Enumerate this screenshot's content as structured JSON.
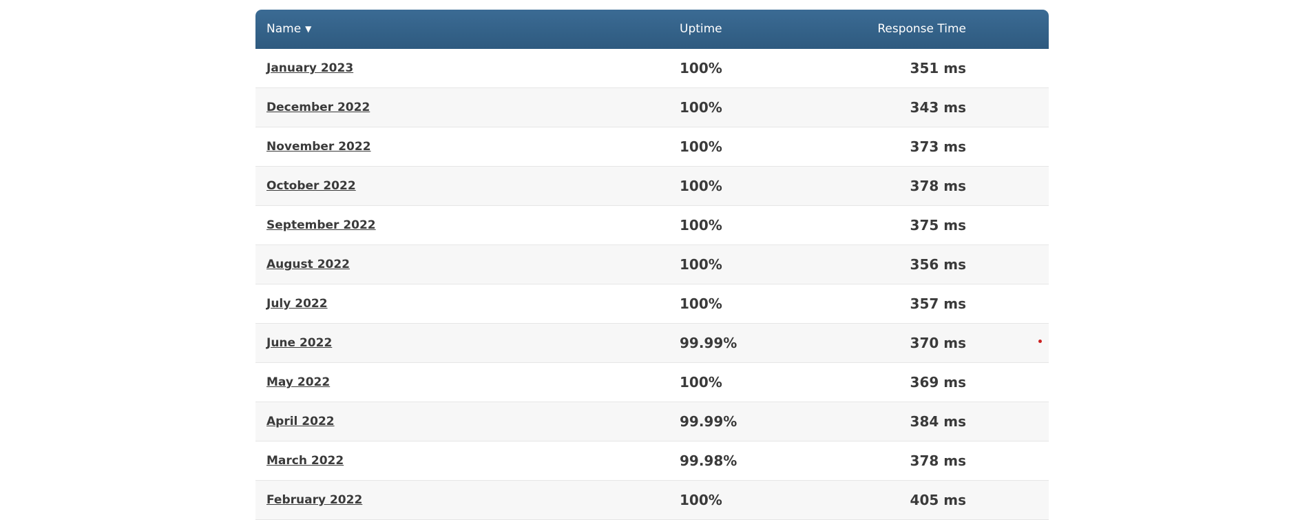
{
  "table": {
    "headers": {
      "name": "Name",
      "sort_indicator": "▼",
      "uptime": "Uptime",
      "response_time": "Response Time"
    },
    "rows": [
      {
        "name": "January 2023",
        "uptime": "100%",
        "response_time": "351 ms",
        "marker": false
      },
      {
        "name": "December 2022",
        "uptime": "100%",
        "response_time": "343 ms",
        "marker": false
      },
      {
        "name": "November 2022",
        "uptime": "100%",
        "response_time": "373 ms",
        "marker": false
      },
      {
        "name": "October 2022",
        "uptime": "100%",
        "response_time": "378 ms",
        "marker": false
      },
      {
        "name": "September 2022",
        "uptime": "100%",
        "response_time": "375 ms",
        "marker": false
      },
      {
        "name": "August 2022",
        "uptime": "100%",
        "response_time": "356 ms",
        "marker": false
      },
      {
        "name": "July 2022",
        "uptime": "100%",
        "response_time": "357 ms",
        "marker": false
      },
      {
        "name": "June 2022",
        "uptime": "99.99%",
        "response_time": "370 ms",
        "marker": true
      },
      {
        "name": "May 2022",
        "uptime": "100%",
        "response_time": "369 ms",
        "marker": false
      },
      {
        "name": "April 2022",
        "uptime": "99.99%",
        "response_time": "384 ms",
        "marker": false
      },
      {
        "name": "March 2022",
        "uptime": "99.98%",
        "response_time": "378 ms",
        "marker": false
      },
      {
        "name": "February 2022",
        "uptime": "100%",
        "response_time": "405 ms",
        "marker": false
      }
    ]
  },
  "colors": {
    "header_bg": "#2e5a7f",
    "marker": "#cc2222"
  }
}
